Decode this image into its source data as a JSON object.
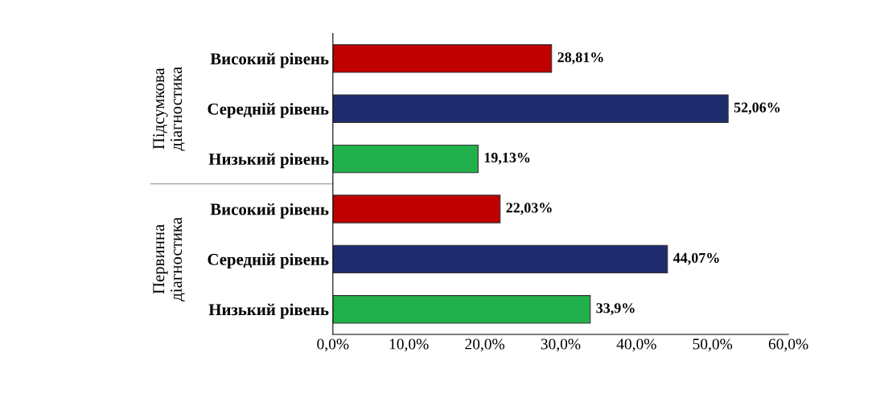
{
  "chart_data": {
    "type": "bar",
    "orientation": "horizontal",
    "categories": [
      "Високий рівень",
      "Середній рівень",
      "Низький рівень",
      "Високий рівень",
      "Середній рівень",
      "Низький рівень"
    ],
    "values": [
      28.81,
      52.06,
      19.13,
      22.03,
      44.07,
      33.9
    ],
    "colors": [
      "#c00000",
      "#1f2d6e",
      "#22b04c",
      "#c00000",
      "#1f2d6e",
      "#22b04c"
    ],
    "value_labels": [
      "28,81%",
      "52,06%",
      "19,13%",
      "22,03%",
      "44,07%",
      "33,9%"
    ],
    "xlim": [
      0,
      60
    ],
    "xticks": [
      {
        "value": 0,
        "label": "0,0%"
      },
      {
        "value": 10,
        "label": "10,0%"
      },
      {
        "value": 20,
        "label": "20,0%"
      },
      {
        "value": 30,
        "label": "30,0%"
      },
      {
        "value": 40,
        "label": "40,0%"
      },
      {
        "value": 50,
        "label": "50,0%"
      },
      {
        "value": 60,
        "label": "60,0%"
      }
    ],
    "annotations": [
      "Підсумкова діагностика",
      "Первинна діагностика"
    ],
    "grid": false,
    "legend": false
  }
}
